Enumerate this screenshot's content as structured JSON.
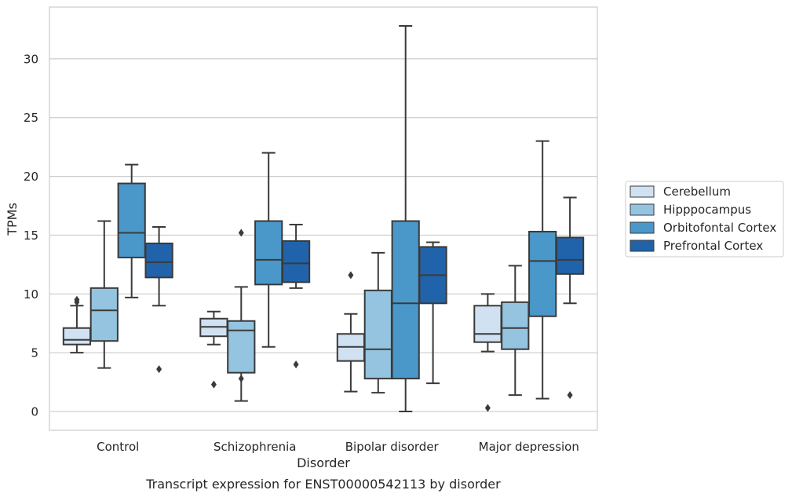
{
  "chart_data": {
    "type": "box",
    "title": "",
    "caption": "Transcript expression for ENST00000542113 by disorder",
    "xlabel": "Disorder",
    "ylabel": "TPMs",
    "ylim": [
      -1.6,
      34.4
    ],
    "yticks": [
      0,
      5,
      10,
      15,
      20,
      25,
      30
    ],
    "grid": "horizontal",
    "legend_position": "right",
    "categories": [
      "Control",
      "Schizophrenia",
      "Bipolar disorder",
      "Major depression"
    ],
    "series": [
      {
        "name": "Cerebellum",
        "color": "#d0e1f2",
        "boxes": [
          {
            "whisker_low": 5.0,
            "q1": 5.7,
            "median": 6.1,
            "q3": 7.1,
            "whisker_high": 9.0,
            "outliers": [
              9.3,
              9.5
            ]
          },
          {
            "whisker_low": 5.7,
            "q1": 6.4,
            "median": 7.2,
            "q3": 7.9,
            "whisker_high": 8.5,
            "outliers": [
              2.3
            ]
          },
          {
            "whisker_low": 1.7,
            "q1": 4.3,
            "median": 5.5,
            "q3": 6.6,
            "whisker_high": 8.3,
            "outliers": [
              11.6
            ]
          },
          {
            "whisker_low": 5.1,
            "q1": 5.9,
            "median": 6.6,
            "q3": 9.0,
            "whisker_high": 10.0,
            "outliers": [
              0.3
            ]
          }
        ]
      },
      {
        "name": "Hipppocampus",
        "color": "#94c4df",
        "boxes": [
          {
            "whisker_low": 3.7,
            "q1": 6.0,
            "median": 8.6,
            "q3": 10.5,
            "whisker_high": 16.2,
            "outliers": []
          },
          {
            "whisker_low": 0.9,
            "q1": 3.3,
            "median": 6.9,
            "q3": 7.7,
            "whisker_high": 10.6,
            "outliers": [
              15.2,
              2.8
            ]
          },
          {
            "whisker_low": 1.6,
            "q1": 2.8,
            "median": 5.3,
            "q3": 10.3,
            "whisker_high": 13.5,
            "outliers": []
          },
          {
            "whisker_low": 1.4,
            "q1": 5.3,
            "median": 7.1,
            "q3": 9.3,
            "whisker_high": 12.4,
            "outliers": []
          }
        ]
      },
      {
        "name": "Orbitofontal Cortex",
        "color": "#4a98c9",
        "boxes": [
          {
            "whisker_low": 9.7,
            "q1": 13.1,
            "median": 15.2,
            "q3": 19.4,
            "whisker_high": 21.0,
            "outliers": []
          },
          {
            "whisker_low": 5.5,
            "q1": 10.8,
            "median": 12.9,
            "q3": 16.2,
            "whisker_high": 22.0,
            "outliers": []
          },
          {
            "whisker_low": 0.0,
            "q1": 2.8,
            "median": 9.2,
            "q3": 16.2,
            "whisker_high": 32.8,
            "outliers": []
          },
          {
            "whisker_low": 1.1,
            "q1": 8.1,
            "median": 12.8,
            "q3": 15.3,
            "whisker_high": 23.0,
            "outliers": []
          }
        ]
      },
      {
        "name": "Prefrontal Cortex",
        "color": "#2163aa",
        "boxes": [
          {
            "whisker_low": 9.0,
            "q1": 11.4,
            "median": 12.7,
            "q3": 14.3,
            "whisker_high": 15.7,
            "outliers": [
              3.6
            ]
          },
          {
            "whisker_low": 10.5,
            "q1": 11.0,
            "median": 12.6,
            "q3": 14.5,
            "whisker_high": 15.9,
            "outliers": [
              4.0
            ]
          },
          {
            "whisker_low": 2.4,
            "q1": 9.2,
            "median": 11.6,
            "q3": 14.0,
            "whisker_high": 14.4,
            "outliers": []
          },
          {
            "whisker_low": 9.2,
            "q1": 11.7,
            "median": 12.9,
            "q3": 14.8,
            "whisker_high": 18.2,
            "outliers": [
              1.4
            ]
          }
        ]
      }
    ]
  }
}
